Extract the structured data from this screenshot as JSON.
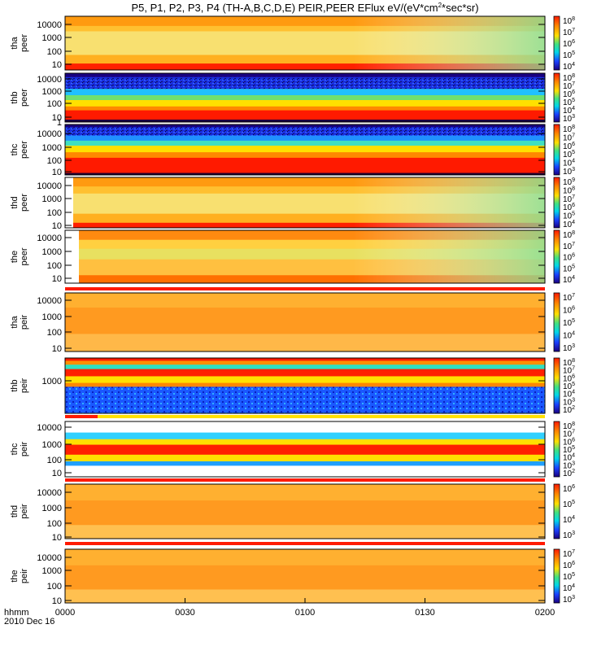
{
  "title": "P5, P1, P2, P3, P4 (TH-A,B,C,D,E) PEIR,PEER EFlux eV/(eV*cm",
  "title_sup": "2",
  "title_tail": "*sec*sr)",
  "x_axis": {
    "row_label": "hhmm",
    "date_label": "2010 Dec 16",
    "ticks": [
      "0000",
      "0030",
      "0100",
      "0130",
      "0200"
    ]
  },
  "colors": {
    "red": "#ff1a00",
    "orange": "#ff8800",
    "yellow": "#ffe000",
    "green": "#40e080",
    "cyan": "#00d8e8",
    "blue": "#1a40ff",
    "navy": "#1a0080"
  },
  "chart_data": [
    {
      "type": "heatmap",
      "probe": "tha",
      "species": "peer",
      "ylabel": [
        "tha",
        "peer"
      ],
      "yticks": [
        "10000",
        "1000",
        "100",
        "10"
      ],
      "colorbar_ticks": [
        "10",
        "10",
        "10",
        "10",
        "10"
      ],
      "colorbar_exps": [
        "8",
        "7",
        "6",
        "5",
        "4"
      ]
    },
    {
      "type": "heatmap",
      "probe": "thb",
      "species": "peer",
      "ylabel": [
        "thb",
        "peer"
      ],
      "yticks": [
        "10000",
        "1000",
        "100",
        "10",
        "1"
      ],
      "colorbar_ticks": [
        "10",
        "10",
        "10",
        "10",
        "10",
        "10"
      ],
      "colorbar_exps": [
        "8",
        "7",
        "6",
        "5",
        "4",
        "3"
      ]
    },
    {
      "type": "heatmap",
      "probe": "thc",
      "species": "peer",
      "ylabel": [
        "thc",
        "peer"
      ],
      "yticks": [
        "10000",
        "1000",
        "100",
        "10"
      ],
      "colorbar_ticks": [
        "10",
        "10",
        "10",
        "10",
        "10",
        "10"
      ],
      "colorbar_exps": [
        "8",
        "7",
        "6",
        "5",
        "4",
        "3"
      ]
    },
    {
      "type": "heatmap",
      "probe": "thd",
      "species": "peer",
      "ylabel": [
        "thd",
        "peer"
      ],
      "yticks": [
        "10000",
        "1000",
        "100",
        "10"
      ],
      "colorbar_ticks": [
        "10",
        "10",
        "10",
        "10",
        "10",
        "10"
      ],
      "colorbar_exps": [
        "9",
        "8",
        "7",
        "6",
        "5",
        "4"
      ]
    },
    {
      "type": "heatmap",
      "probe": "the",
      "species": "peer",
      "ylabel": [
        "the",
        "peer"
      ],
      "yticks": [
        "10000",
        "1000",
        "100",
        "10"
      ],
      "colorbar_ticks": [
        "10",
        "10",
        "10",
        "10",
        "10"
      ],
      "colorbar_exps": [
        "8",
        "7",
        "6",
        "5",
        "4"
      ]
    },
    {
      "type": "heatmap",
      "probe": "tha",
      "species": "peir",
      "ylabel": [
        "tha",
        "peir"
      ],
      "yticks": [
        "10000",
        "1000",
        "100",
        "10"
      ],
      "colorbar_ticks": [
        "10",
        "10",
        "10",
        "10",
        "10"
      ],
      "colorbar_exps": [
        "7",
        "6",
        "5",
        "4",
        "3"
      ]
    },
    {
      "type": "heatmap",
      "probe": "thb",
      "species": "peir",
      "ylabel": [
        "thb",
        "peir"
      ],
      "yticks": [
        "1000"
      ],
      "colorbar_ticks": [
        "10",
        "10",
        "10",
        "10",
        "10",
        "10",
        "10"
      ],
      "colorbar_exps": [
        "8",
        "7",
        "6",
        "5",
        "4",
        "3",
        "2"
      ]
    },
    {
      "type": "heatmap",
      "probe": "thc",
      "species": "peir",
      "ylabel": [
        "thc",
        "peir"
      ],
      "yticks": [
        "10000",
        "1000",
        "100",
        "10"
      ],
      "colorbar_ticks": [
        "10",
        "10",
        "10",
        "10",
        "10",
        "10",
        "10"
      ],
      "colorbar_exps": [
        "8",
        "7",
        "6",
        "5",
        "4",
        "3",
        "2"
      ]
    },
    {
      "type": "heatmap",
      "probe": "thd",
      "species": "peir",
      "ylabel": [
        "thd",
        "peir"
      ],
      "yticks": [
        "10000",
        "1000",
        "100",
        "10"
      ],
      "colorbar_ticks": [
        "10",
        "10",
        "10",
        "10"
      ],
      "colorbar_exps": [
        "6",
        "5",
        "4",
        "3"
      ]
    },
    {
      "type": "heatmap",
      "probe": "the",
      "species": "peir",
      "ylabel": [
        "the",
        "peir"
      ],
      "yticks": [
        "10000",
        "1000",
        "100",
        "10"
      ],
      "colorbar_ticks": [
        "10",
        "10",
        "10",
        "10",
        "10"
      ],
      "colorbar_exps": [
        "7",
        "6",
        "5",
        "4",
        "3"
      ]
    }
  ]
}
